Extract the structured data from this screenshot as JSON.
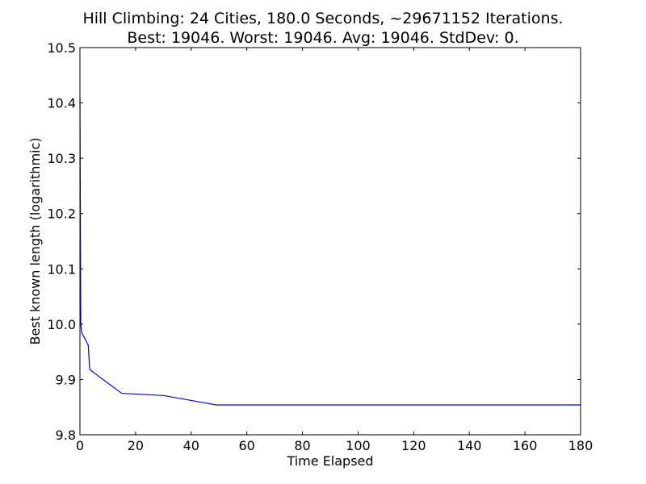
{
  "chart_data": {
    "type": "line",
    "title": "Hill Climbing: 24 Cities, 180.0 Seconds, ~29671152 Iterations.",
    "subtitle": "Best: 19046. Worst: 19046. Avg: 19046. StdDev: 0.",
    "xlabel": "Time Elapsed",
    "ylabel": "Best known length (logarithmic)",
    "xlim": [
      0,
      180
    ],
    "ylim": [
      9.8,
      10.5
    ],
    "xticks": [
      0,
      20,
      40,
      60,
      80,
      100,
      120,
      140,
      160,
      180
    ],
    "yticks": [
      9.8,
      9.9,
      10.0,
      10.1,
      10.2,
      10.3,
      10.4,
      10.5
    ],
    "xtick_labels": [
      "0",
      "20",
      "40",
      "60",
      "80",
      "100",
      "120",
      "140",
      "160",
      "180"
    ],
    "ytick_labels": [
      "9.8",
      "9.9",
      "10.0",
      "10.1",
      "10.2",
      "10.3",
      "10.4",
      "10.5"
    ],
    "grid": false,
    "series": [
      {
        "color": "#0000ff",
        "x": [
          0.0,
          0.3,
          0.6,
          3.0,
          3.5,
          15.0,
          30.0,
          49.0,
          180.0
        ],
        "y": [
          10.41,
          10.0,
          9.985,
          9.962,
          9.918,
          9.875,
          9.871,
          9.854,
          9.854
        ]
      }
    ]
  }
}
